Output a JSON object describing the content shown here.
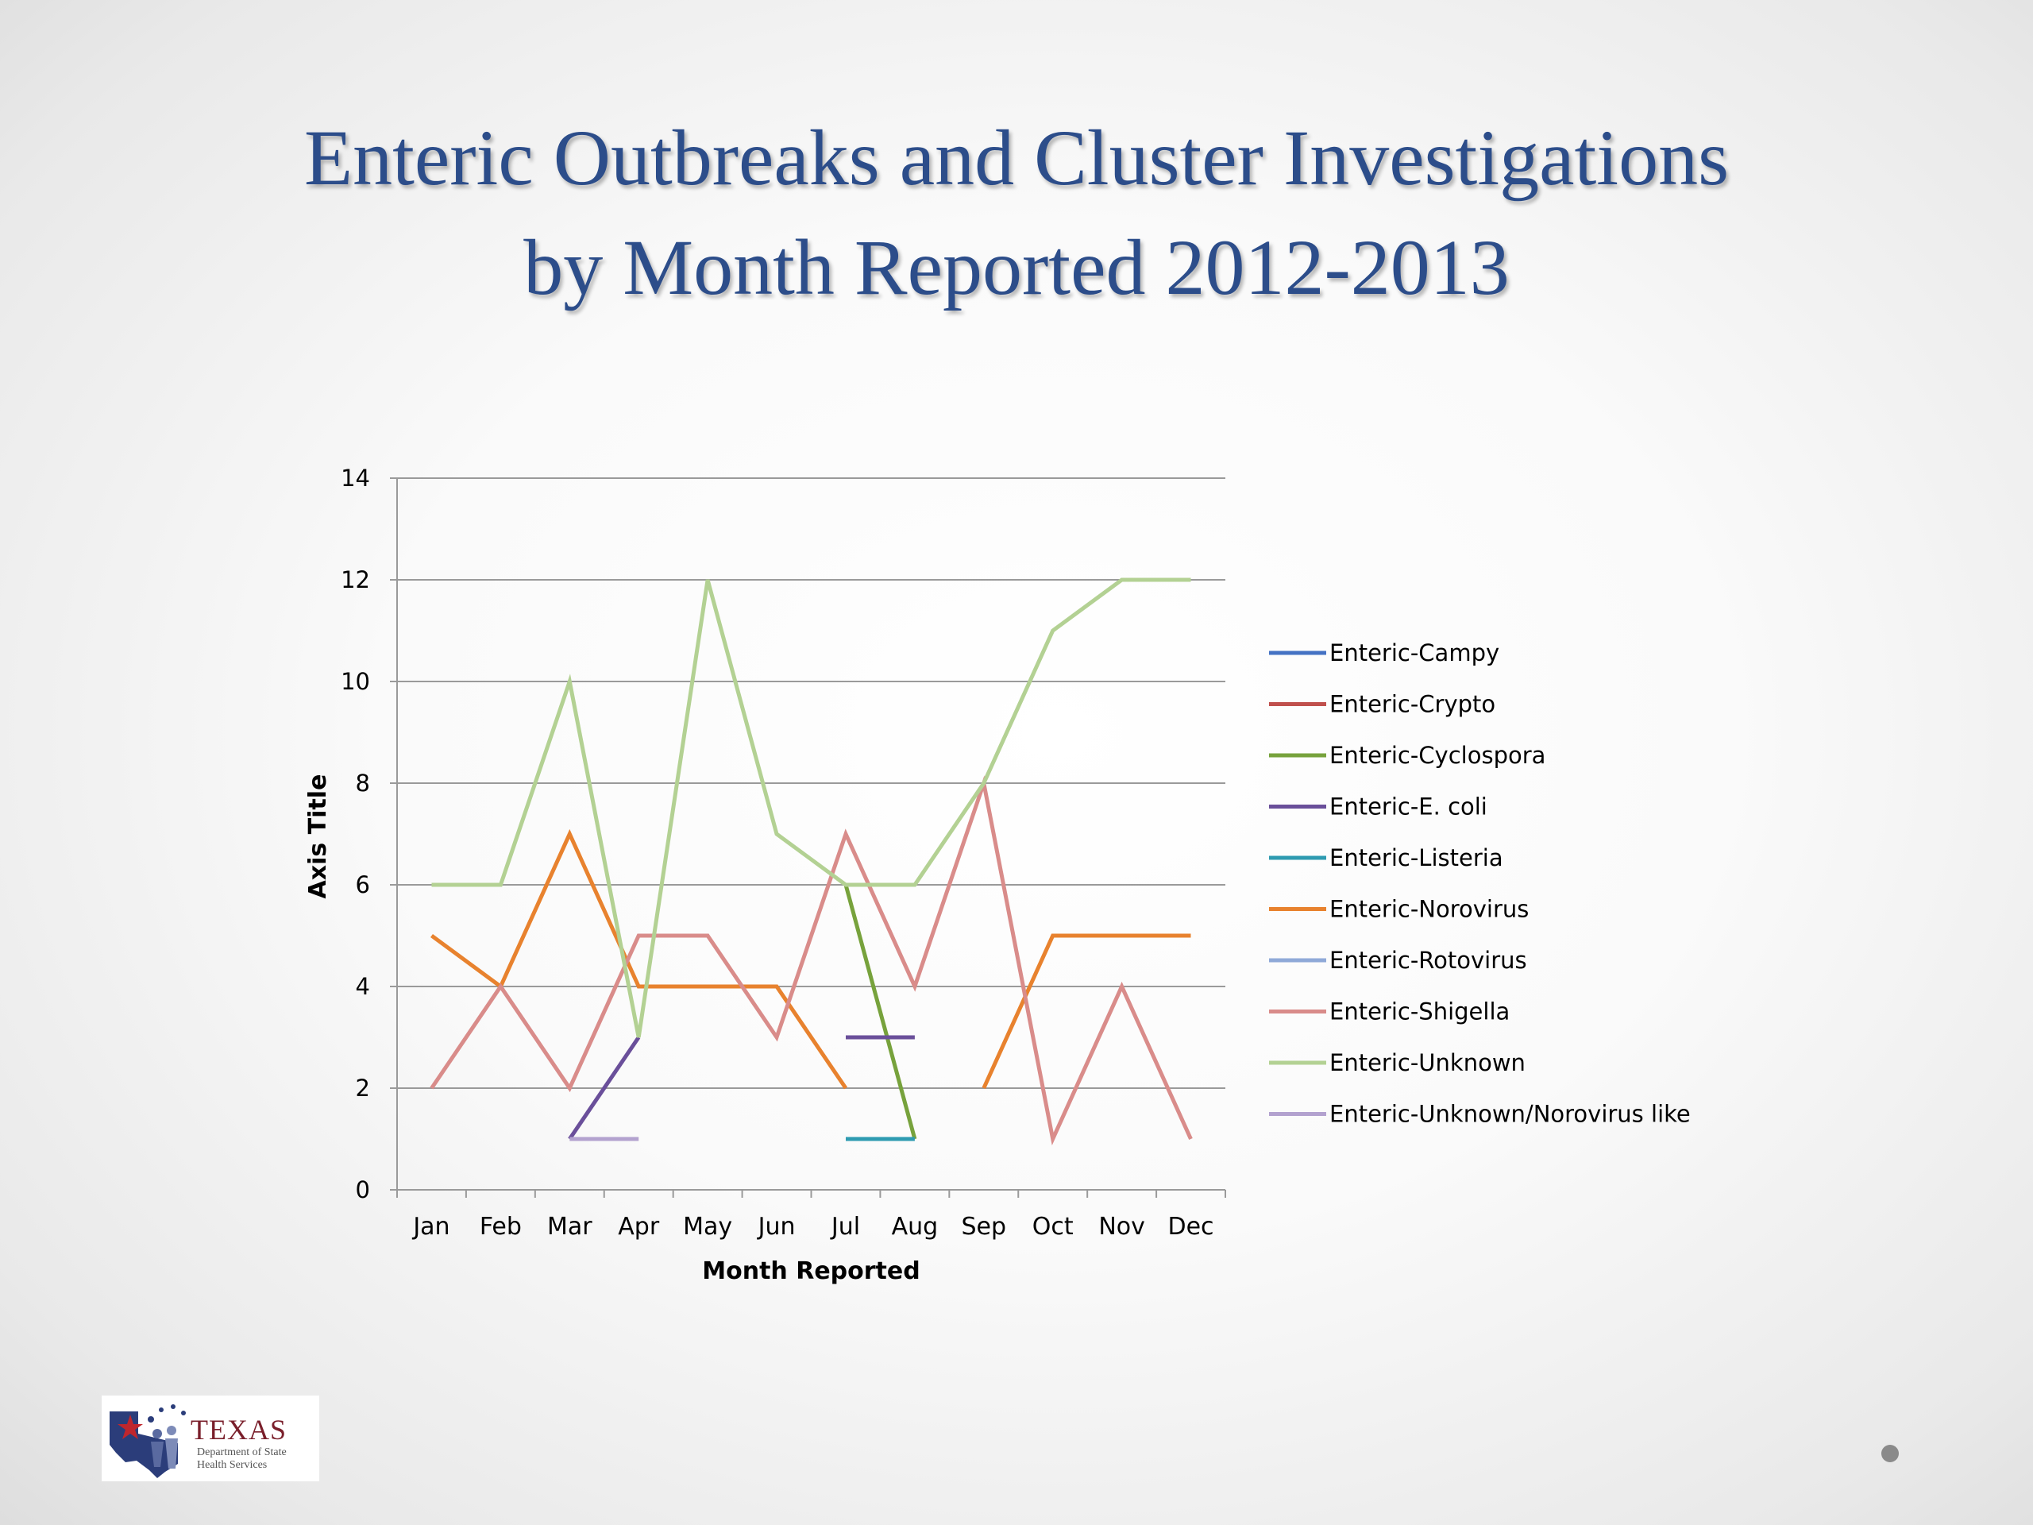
{
  "slide": {
    "title_line1": "Enteric Outbreaks and Cluster Investigations",
    "title_line2": "by Month Reported 2012-2013"
  },
  "logo": {
    "text_big": "TEXAS",
    "text_small": "Department of State Health Services"
  },
  "chart_data": {
    "type": "line",
    "title": "",
    "xlabel": "Month Reported",
    "ylabel": "Axis Title",
    "ylim": [
      0,
      14
    ],
    "yticks": [
      0,
      2,
      4,
      6,
      8,
      10,
      12,
      14
    ],
    "grid": true,
    "legend_position": "right",
    "categories": [
      "Jan",
      "Feb",
      "Mar",
      "Apr",
      "May",
      "Jun",
      "Jul",
      "Aug",
      "Sep",
      "Oct",
      "Nov",
      "Dec"
    ],
    "series": [
      {
        "name": "Enteric-Campy",
        "color": "#4472c4",
        "values": [
          null,
          null,
          null,
          null,
          null,
          null,
          null,
          null,
          null,
          null,
          null,
          null
        ]
      },
      {
        "name": "Enteric-Crypto",
        "color": "#c0504d",
        "values": [
          null,
          null,
          null,
          null,
          null,
          null,
          null,
          null,
          null,
          null,
          null,
          null
        ]
      },
      {
        "name": "Enteric-Cyclospora",
        "color": "#77a23c",
        "values": [
          null,
          null,
          null,
          null,
          null,
          null,
          6,
          1,
          null,
          null,
          null,
          null
        ]
      },
      {
        "name": "Enteric-E. coli",
        "color": "#6a4f9a",
        "values": [
          null,
          null,
          1,
          3,
          null,
          null,
          3,
          3,
          null,
          null,
          null,
          null
        ]
      },
      {
        "name": "Enteric-Listeria",
        "color": "#2e9bb1",
        "values": [
          null,
          null,
          null,
          null,
          null,
          null,
          1,
          1,
          null,
          null,
          null,
          null
        ]
      },
      {
        "name": "Enteric-Norovirus",
        "color": "#e8822e",
        "values": [
          5,
          4,
          7,
          4,
          4,
          4,
          2,
          null,
          2,
          5,
          5,
          5
        ]
      },
      {
        "name": "Enteric-Rotovirus",
        "color": "#8fa9d8",
        "values": [
          null,
          null,
          null,
          null,
          null,
          null,
          null,
          null,
          null,
          null,
          null,
          null
        ]
      },
      {
        "name": "Enteric-Shigella",
        "color": "#d98c8a",
        "values": [
          2,
          4,
          2,
          5,
          5,
          3,
          7,
          4,
          8,
          1,
          4,
          1
        ]
      },
      {
        "name": "Enteric-Unknown",
        "color": "#b3d193",
        "values": [
          6,
          6,
          10,
          3,
          12,
          7,
          6,
          6,
          8,
          11,
          12,
          12
        ]
      },
      {
        "name": "Enteric-Unknown/Norovirus like",
        "color": "#b3a2cf",
        "values": [
          null,
          null,
          1,
          1,
          null,
          null,
          null,
          null,
          null,
          null,
          null,
          null
        ]
      }
    ]
  }
}
